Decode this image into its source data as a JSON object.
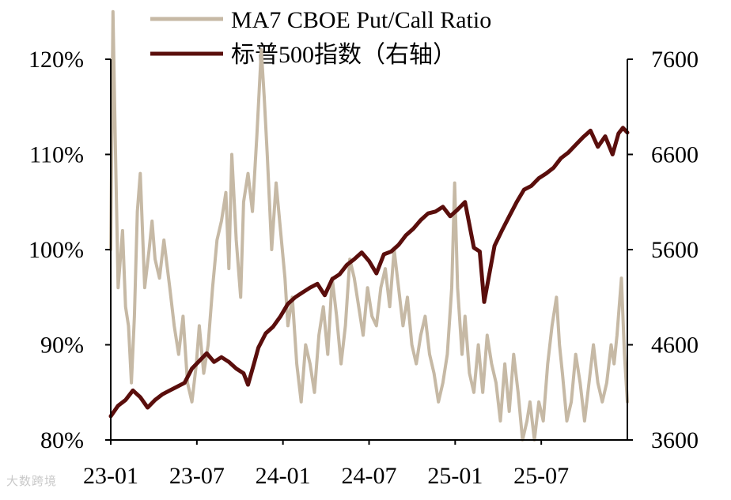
{
  "colors": {
    "put_call": "#c6b9a5",
    "sp500": "#5a0e0c",
    "axis": "#000000",
    "background": "#ffffff"
  },
  "watermark_text": "大数跨境",
  "chart_data": {
    "type": "line",
    "title": "",
    "grid": false,
    "legend_position": "top",
    "x_ticks": [
      "23-01",
      "23-07",
      "24-01",
      "24-07",
      "25-01",
      "25-07"
    ],
    "x_range": [
      0,
      35
    ],
    "y_left": {
      "lim": [
        80,
        120
      ],
      "ticks": [
        80,
        90,
        100,
        110,
        120
      ],
      "tick_labels": [
        "80%",
        "90%",
        "100%",
        "110%",
        "120%"
      ]
    },
    "y_right": {
      "lim": [
        3600,
        7600
      ],
      "ticks": [
        3600,
        4600,
        5600,
        6600,
        7600
      ],
      "tick_labels": [
        "3600",
        "4600",
        "5600",
        "6600",
        "7600"
      ]
    },
    "series": [
      {
        "name": "MA7 CBOE Put/Call Ratio",
        "axis": "left",
        "points": [
          [
            0,
            100
          ],
          [
            0.15,
            125
          ],
          [
            0.3,
            112
          ],
          [
            0.5,
            96
          ],
          [
            0.8,
            102
          ],
          [
            1,
            94
          ],
          [
            1.2,
            92
          ],
          [
            1.4,
            86
          ],
          [
            1.6,
            93
          ],
          [
            1.8,
            104
          ],
          [
            2.0,
            108
          ],
          [
            2.3,
            96
          ],
          [
            2.6,
            100
          ],
          [
            2.8,
            103
          ],
          [
            3.0,
            99
          ],
          [
            3.3,
            97
          ],
          [
            3.6,
            101
          ],
          [
            4.0,
            96
          ],
          [
            4.3,
            92
          ],
          [
            4.6,
            89
          ],
          [
            4.9,
            93
          ],
          [
            5.2,
            86
          ],
          [
            5.5,
            84
          ],
          [
            5.8,
            88
          ],
          [
            6.0,
            92
          ],
          [
            6.3,
            87
          ],
          [
            6.6,
            90
          ],
          [
            6.9,
            96
          ],
          [
            7.2,
            101
          ],
          [
            7.5,
            103
          ],
          [
            7.8,
            106
          ],
          [
            8.0,
            98
          ],
          [
            8.2,
            110
          ],
          [
            8.5,
            101
          ],
          [
            8.8,
            95
          ],
          [
            9.0,
            105
          ],
          [
            9.3,
            108
          ],
          [
            9.6,
            104
          ],
          [
            9.9,
            112
          ],
          [
            10.2,
            121
          ],
          [
            10.4,
            116
          ],
          [
            10.6,
            110
          ],
          [
            10.9,
            100
          ],
          [
            11.2,
            107
          ],
          [
            11.5,
            102
          ],
          [
            11.8,
            97
          ],
          [
            12.0,
            92
          ],
          [
            12.3,
            95
          ],
          [
            12.6,
            88
          ],
          [
            12.9,
            84
          ],
          [
            13.2,
            90
          ],
          [
            13.5,
            88
          ],
          [
            13.8,
            85
          ],
          [
            14.1,
            91
          ],
          [
            14.4,
            94
          ],
          [
            14.7,
            89
          ],
          [
            15.0,
            97
          ],
          [
            15.3,
            93
          ],
          [
            15.6,
            88
          ],
          [
            15.9,
            92
          ],
          [
            16.2,
            99
          ],
          [
            16.5,
            97
          ],
          [
            16.8,
            94
          ],
          [
            17.1,
            91
          ],
          [
            17.4,
            96
          ],
          [
            17.7,
            93
          ],
          [
            18.0,
            92
          ],
          [
            18.3,
            96
          ],
          [
            18.6,
            98
          ],
          [
            18.9,
            94
          ],
          [
            19.2,
            100
          ],
          [
            19.5,
            96
          ],
          [
            19.8,
            92
          ],
          [
            20.1,
            95
          ],
          [
            20.4,
            90
          ],
          [
            20.7,
            88
          ],
          [
            21.0,
            91
          ],
          [
            21.3,
            93
          ],
          [
            21.6,
            89
          ],
          [
            21.9,
            87
          ],
          [
            22.2,
            84
          ],
          [
            22.5,
            86
          ],
          [
            22.8,
            89
          ],
          [
            23.1,
            96
          ],
          [
            23.3,
            107
          ],
          [
            23.5,
            96
          ],
          [
            23.8,
            89
          ],
          [
            24.0,
            93
          ],
          [
            24.3,
            87
          ],
          [
            24.6,
            85
          ],
          [
            24.9,
            90
          ],
          [
            25.2,
            85
          ],
          [
            25.5,
            91
          ],
          [
            25.8,
            88
          ],
          [
            26.1,
            86
          ],
          [
            26.4,
            82
          ],
          [
            26.7,
            88
          ],
          [
            27.0,
            83
          ],
          [
            27.3,
            89
          ],
          [
            27.6,
            85
          ],
          [
            27.9,
            80
          ],
          [
            28.2,
            82
          ],
          [
            28.4,
            84
          ],
          [
            28.7,
            80
          ],
          [
            29.0,
            84
          ],
          [
            29.3,
            82
          ],
          [
            29.6,
            88
          ],
          [
            29.9,
            92
          ],
          [
            30.2,
            95
          ],
          [
            30.4,
            90
          ],
          [
            30.6,
            87
          ],
          [
            30.9,
            82
          ],
          [
            31.2,
            84
          ],
          [
            31.5,
            89
          ],
          [
            31.8,
            86
          ],
          [
            32.1,
            82
          ],
          [
            32.4,
            86
          ],
          [
            32.7,
            90
          ],
          [
            33.0,
            86
          ],
          [
            33.3,
            84
          ],
          [
            33.6,
            86
          ],
          [
            33.9,
            90
          ],
          [
            34.1,
            88
          ],
          [
            34.3,
            91
          ],
          [
            34.6,
            97
          ],
          [
            34.8,
            89
          ],
          [
            35.0,
            84
          ]
        ]
      },
      {
        "name": "标普500指数（右轴）",
        "axis": "right",
        "points": [
          [
            0,
            3850
          ],
          [
            0.5,
            3960
          ],
          [
            1,
            4020
          ],
          [
            1.5,
            4120
          ],
          [
            2,
            4050
          ],
          [
            2.5,
            3940
          ],
          [
            3,
            4020
          ],
          [
            3.5,
            4080
          ],
          [
            4,
            4120
          ],
          [
            4.5,
            4160
          ],
          [
            5,
            4200
          ],
          [
            5.5,
            4350
          ],
          [
            6,
            4430
          ],
          [
            6.5,
            4510
          ],
          [
            7,
            4420
          ],
          [
            7.5,
            4470
          ],
          [
            8,
            4420
          ],
          [
            8.5,
            4350
          ],
          [
            9,
            4300
          ],
          [
            9.3,
            4180
          ],
          [
            9.7,
            4400
          ],
          [
            10,
            4570
          ],
          [
            10.5,
            4720
          ],
          [
            11,
            4790
          ],
          [
            11.5,
            4900
          ],
          [
            12,
            5030
          ],
          [
            12.5,
            5100
          ],
          [
            13,
            5150
          ],
          [
            13.5,
            5200
          ],
          [
            14,
            5240
          ],
          [
            14.5,
            5120
          ],
          [
            15,
            5290
          ],
          [
            15.5,
            5340
          ],
          [
            16,
            5440
          ],
          [
            16.5,
            5500
          ],
          [
            17,
            5570
          ],
          [
            17.5,
            5480
          ],
          [
            18,
            5350
          ],
          [
            18.5,
            5550
          ],
          [
            19,
            5580
          ],
          [
            19.5,
            5650
          ],
          [
            20,
            5750
          ],
          [
            20.5,
            5820
          ],
          [
            21,
            5910
          ],
          [
            21.5,
            5980
          ],
          [
            22,
            6000
          ],
          [
            22.5,
            6050
          ],
          [
            23,
            5950
          ],
          [
            23.5,
            6020
          ],
          [
            24,
            6100
          ],
          [
            24.3,
            5860
          ],
          [
            24.6,
            5620
          ],
          [
            25,
            5580
          ],
          [
            25.3,
            5050
          ],
          [
            25.6,
            5300
          ],
          [
            26,
            5640
          ],
          [
            26.5,
            5800
          ],
          [
            27,
            5950
          ],
          [
            27.5,
            6100
          ],
          [
            28,
            6230
          ],
          [
            28.5,
            6270
          ],
          [
            29,
            6350
          ],
          [
            29.5,
            6400
          ],
          [
            30,
            6460
          ],
          [
            30.5,
            6560
          ],
          [
            31,
            6620
          ],
          [
            31.5,
            6700
          ],
          [
            32,
            6780
          ],
          [
            32.5,
            6850
          ],
          [
            33,
            6680
          ],
          [
            33.5,
            6790
          ],
          [
            34,
            6600
          ],
          [
            34.4,
            6820
          ],
          [
            34.7,
            6880
          ],
          [
            35,
            6830
          ]
        ]
      }
    ]
  }
}
